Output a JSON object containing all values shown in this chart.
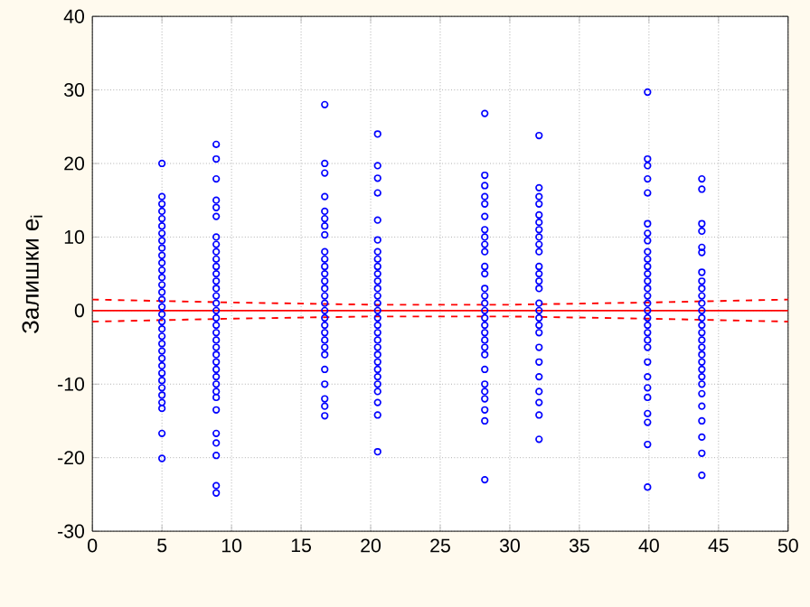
{
  "chart_data": {
    "type": "scatter",
    "ylabel": "Залишки e$_{i}$",
    "xlim": [
      0,
      50
    ],
    "ylim": [
      -30,
      40
    ],
    "xticks": [
      0,
      5,
      10,
      15,
      20,
      25,
      30,
      35,
      40,
      45,
      50
    ],
    "yticks": [
      -30,
      -20,
      -10,
      0,
      10,
      20,
      30,
      40
    ],
    "grid": true,
    "series": [
      {
        "marker": "circle",
        "color": "#0000ff",
        "x": [
          5,
          5,
          5,
          5,
          5,
          5,
          5,
          5,
          5,
          5,
          5,
          5,
          5,
          5,
          5,
          5,
          5,
          5,
          5,
          5,
          5,
          5,
          5,
          5,
          5,
          5,
          5,
          5,
          5,
          5,
          5,
          5,
          5,
          8.9,
          8.9,
          8.9,
          8.9,
          8.9,
          8.9,
          8.9,
          8.9,
          8.9,
          8.9,
          8.9,
          8.9,
          8.9,
          8.9,
          8.9,
          8.9,
          8.9,
          8.9,
          8.9,
          8.9,
          8.9,
          8.9,
          8.9,
          8.9,
          8.9,
          8.9,
          8.9,
          8.9,
          8.9,
          8.9,
          8.9,
          8.9,
          8.9,
          8.9,
          8.9,
          16.7,
          16.7,
          16.7,
          16.7,
          16.7,
          16.7,
          16.7,
          16.7,
          16.7,
          16.7,
          16.7,
          16.7,
          16.7,
          16.7,
          16.7,
          16.7,
          16.7,
          16.7,
          16.7,
          16.7,
          16.7,
          16.7,
          16.7,
          16.7,
          16.7,
          16.7,
          16.7,
          16.7,
          20.5,
          20.5,
          20.5,
          20.5,
          20.5,
          20.5,
          20.5,
          20.5,
          20.5,
          20.5,
          20.5,
          20.5,
          20.5,
          20.5,
          20.5,
          20.5,
          20.5,
          20.5,
          20.5,
          20.5,
          20.5,
          20.5,
          20.5,
          20.5,
          20.5,
          20.5,
          20.5,
          20.5,
          20.5,
          28.2,
          28.2,
          28.2,
          28.2,
          28.2,
          28.2,
          28.2,
          28.2,
          28.2,
          28.2,
          28.2,
          28.2,
          28.2,
          28.2,
          28.2,
          28.2,
          28.2,
          28.2,
          28.2,
          28.2,
          28.2,
          28.2,
          28.2,
          28.2,
          28.2,
          28.2,
          28.2,
          28.2,
          28.2,
          32.1,
          32.1,
          32.1,
          32.1,
          32.1,
          32.1,
          32.1,
          32.1,
          32.1,
          32.1,
          32.1,
          32.1,
          32.1,
          32.1,
          32.1,
          32.1,
          32.1,
          32.1,
          32.1,
          32.1,
          32.1,
          32.1,
          32.1,
          32.1,
          32.1,
          32.1,
          39.9,
          39.9,
          39.9,
          39.9,
          39.9,
          39.9,
          39.9,
          39.9,
          39.9,
          39.9,
          39.9,
          39.9,
          39.9,
          39.9,
          39.9,
          39.9,
          39.9,
          39.9,
          39.9,
          39.9,
          39.9,
          39.9,
          39.9,
          39.9,
          39.9,
          39.9,
          39.9,
          39.9,
          39.9,
          39.9,
          43.8,
          43.8,
          43.8,
          43.8,
          43.8,
          43.8,
          43.8,
          43.8,
          43.8,
          43.8,
          43.8,
          43.8,
          43.8,
          43.8,
          43.8,
          43.8,
          43.8,
          43.8,
          43.8,
          43.8,
          43.8,
          43.8,
          43.8,
          43.8,
          43.8,
          43.8,
          43.8,
          43.8
        ],
        "values": [
          20,
          15.5,
          14.5,
          13.5,
          12.5,
          11.5,
          10.5,
          9.5,
          8.5,
          7.5,
          6.5,
          5.5,
          4.5,
          3.5,
          2.5,
          1.5,
          0.5,
          -0.5,
          -1.5,
          -2.5,
          -3.5,
          -4.5,
          -5.5,
          -6.5,
          -7.5,
          -8.5,
          -9.5,
          -10.5,
          -11.5,
          -12.5,
          -13.3,
          -16.7,
          -20.1,
          22.6,
          20.6,
          17.9,
          15,
          14,
          12.8,
          10,
          9,
          8,
          7,
          6,
          5,
          4,
          3,
          2,
          1,
          0,
          -1,
          -2,
          -3,
          -4,
          -5,
          -6,
          -7,
          -8,
          -9,
          -10,
          -11,
          -11.8,
          -13.5,
          -16.7,
          -18,
          -19.7,
          -23.8,
          -24.8,
          28,
          20,
          18.7,
          15.5,
          13.5,
          12.5,
          11.5,
          10.3,
          8,
          7,
          6,
          5,
          4,
          3,
          2,
          1,
          0,
          -1,
          -2,
          -3,
          -4,
          -5,
          -6,
          -8,
          -10,
          -12,
          -13,
          -14.3,
          24,
          19.7,
          18,
          16,
          12.3,
          9.6,
          8,
          7,
          6,
          5,
          4,
          3,
          2,
          1,
          0,
          -1,
          -2,
          -3,
          -4,
          -5,
          -6,
          -7,
          -8,
          -9,
          -10,
          -11,
          -12.5,
          -14.2,
          -19.2,
          26.8,
          18.4,
          17,
          15.5,
          14.5,
          12.8,
          11,
          10,
          9,
          8,
          6,
          5,
          3,
          2,
          1,
          0,
          -1,
          -2,
          -3,
          -4,
          -5,
          -6,
          -8,
          -10,
          -11,
          -12,
          -13.5,
          -15,
          -23,
          23.8,
          16.7,
          15.5,
          14.5,
          13,
          12,
          11,
          10,
          9,
          8,
          6,
          5,
          4,
          3,
          1,
          0,
          -1,
          -2,
          -3,
          -5,
          -7,
          -9,
          -11,
          -12.5,
          -14.2,
          -17.5,
          29.7,
          20.6,
          19.7,
          17.9,
          16,
          11.8,
          10.5,
          9.5,
          8,
          7,
          6,
          5,
          4,
          3,
          2,
          1,
          0,
          -1,
          -2,
          -3,
          -4,
          -5,
          -7,
          -9,
          -10.5,
          -11.8,
          -14,
          -15.2,
          -18.2,
          -24,
          17.9,
          16.5,
          11.8,
          10.8,
          8.6,
          7.9,
          5.2,
          4,
          3,
          2,
          1,
          0,
          -1,
          -2,
          -3,
          -4,
          -5,
          -6,
          -7,
          -8,
          -9,
          -10,
          -11.3,
          -13,
          -15,
          -17.2,
          -19.4,
          -22.4
        ]
      },
      {
        "type": "line",
        "line_style": "solid",
        "color": "#ff0000",
        "x": [
          0,
          50
        ],
        "values": [
          0,
          0
        ]
      },
      {
        "type": "line",
        "line_style": "dashed",
        "color": "#ff0000",
        "x": [
          0,
          10,
          20,
          25,
          30,
          40,
          50
        ],
        "values": [
          1.5,
          1.1,
          0.8,
          0.8,
          0.8,
          1.1,
          1.5
        ]
      },
      {
        "type": "line",
        "line_style": "dashed",
        "color": "#ff0000",
        "x": [
          0,
          10,
          20,
          25,
          30,
          40,
          50
        ],
        "values": [
          -1.5,
          -1.1,
          -0.8,
          -0.8,
          -0.8,
          -1.1,
          -1.5
        ]
      }
    ]
  }
}
